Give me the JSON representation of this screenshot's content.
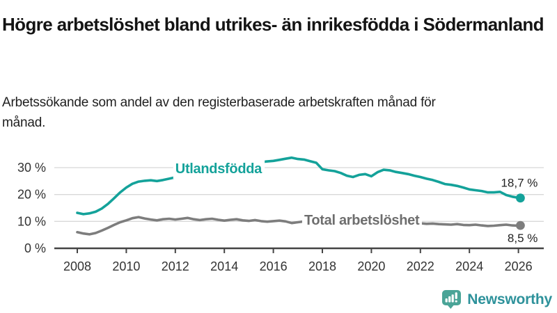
{
  "header": {
    "title": "Högre arbetslöshet bland utrikes- än inrikesfödda i Södermanland",
    "subtitle": "Arbetssökande som andel av den registerbaserade arbetskraften månad för månad."
  },
  "colors": {
    "accent_teal": "#14A29A",
    "series_gray": "#7D7D7D",
    "gray_label": "#6E6E6E",
    "grid": "#D8D8D8",
    "axis": "#444444",
    "tick_text": "#333333",
    "value_text": "#222222",
    "logo_icon": "#4AA497",
    "logo_text": "#2E929B"
  },
  "branding": {
    "logo_text": "Newsworthy",
    "logo_icon": "newsworthy-speech-bubble-bar-chart-icon"
  },
  "chart_data": {
    "type": "line",
    "title": "Högre arbetslöshet bland utrikes- än inrikesfödda i Södermanland",
    "xlabel": "",
    "ylabel": "",
    "grid": true,
    "legend_position": "inline-labels",
    "x_axis": {
      "ticks": [
        2008,
        2010,
        2012,
        2014,
        2016,
        2018,
        2020,
        2022,
        2024,
        2026
      ],
      "range": [
        2007.1,
        2027.0
      ]
    },
    "y_axis": {
      "ticks": [
        0,
        10,
        20,
        30
      ],
      "tick_labels": [
        "0 %",
        "10 %",
        "20 %",
        "30 %"
      ],
      "unit": "%",
      "range": [
        0,
        36
      ]
    },
    "series": [
      {
        "name": "Utlandsfödda",
        "color": "#14A29A",
        "label_color": "#14A29A",
        "end_label": "18,7 %",
        "end_value": 18.7,
        "value_label_position": "above",
        "label_at": {
          "x": 2012.0,
          "y": 27.9
        },
        "x": [
          2008.0,
          2008.25,
          2008.5,
          2008.75,
          2009.0,
          2009.25,
          2009.5,
          2009.75,
          2010.0,
          2010.25,
          2010.5,
          2010.75,
          2011.0,
          2011.25,
          2011.5,
          2011.75,
          2012.0,
          2012.25,
          2012.5,
          2012.75,
          2013.0,
          2013.25,
          2013.5,
          2013.75,
          2014.0,
          2014.25,
          2014.5,
          2014.75,
          2015.0,
          2015.25,
          2015.5,
          2015.75,
          2016.0,
          2016.25,
          2016.5,
          2016.75,
          2017.0,
          2017.25,
          2017.5,
          2017.75,
          2018.0,
          2018.25,
          2018.5,
          2018.75,
          2019.0,
          2019.25,
          2019.5,
          2019.75,
          2020.0,
          2020.25,
          2020.5,
          2020.75,
          2021.0,
          2021.25,
          2021.5,
          2021.75,
          2022.0,
          2022.25,
          2022.5,
          2022.75,
          2023.0,
          2023.25,
          2023.5,
          2023.75,
          2024.0,
          2024.25,
          2024.5,
          2024.75,
          2025.0,
          2025.25,
          2025.5,
          2025.75,
          2026.0,
          2026.08
        ],
        "values": [
          13.2,
          12.7,
          13.0,
          13.6,
          14.8,
          16.5,
          18.6,
          20.8,
          22.6,
          24.0,
          24.8,
          25.1,
          25.3,
          25.0,
          25.4,
          25.9,
          26.4,
          26.8,
          26.6,
          27.1,
          27.6,
          28.0,
          28.3,
          28.7,
          29.2,
          29.6,
          30.0,
          30.5,
          31.0,
          31.6,
          32.1,
          32.3,
          32.5,
          32.9,
          33.3,
          33.7,
          33.2,
          33.0,
          32.4,
          31.8,
          29.4,
          29.0,
          28.7,
          28.0,
          27.0,
          26.5,
          27.3,
          27.6,
          26.8,
          28.3,
          29.2,
          29.0,
          28.4,
          28.0,
          27.6,
          27.0,
          26.5,
          25.9,
          25.4,
          24.7,
          23.9,
          23.6,
          23.2,
          22.6,
          21.9,
          21.6,
          21.3,
          20.8,
          20.8,
          21.0,
          19.8,
          19.2,
          18.8,
          18.7
        ]
      },
      {
        "name": "Total arbetslöshet",
        "color": "#7D7D7D",
        "label_color": "#6E6E6E",
        "end_label": "8,5 %",
        "end_value": 8.5,
        "value_label_position": "below",
        "label_at": {
          "x": 2017.26,
          "y": 8.8
        },
        "x": [
          2008.0,
          2008.25,
          2008.5,
          2008.75,
          2009.0,
          2009.25,
          2009.5,
          2009.75,
          2010.0,
          2010.25,
          2010.5,
          2010.75,
          2011.0,
          2011.25,
          2011.5,
          2011.75,
          2012.0,
          2012.25,
          2012.5,
          2012.75,
          2013.0,
          2013.25,
          2013.5,
          2013.75,
          2014.0,
          2014.25,
          2014.5,
          2014.75,
          2015.0,
          2015.25,
          2015.5,
          2015.75,
          2016.0,
          2016.25,
          2016.5,
          2016.75,
          2017.0,
          2017.25,
          2017.5,
          2017.75,
          2018.0,
          2018.25,
          2018.5,
          2018.75,
          2019.0,
          2019.25,
          2019.5,
          2019.75,
          2020.0,
          2020.25,
          2020.5,
          2020.75,
          2021.0,
          2021.25,
          2021.5,
          2021.75,
          2022.0,
          2022.25,
          2022.5,
          2022.75,
          2023.0,
          2023.25,
          2023.5,
          2023.75,
          2024.0,
          2024.25,
          2024.5,
          2024.75,
          2025.0,
          2025.25,
          2025.5,
          2025.75,
          2026.0,
          2026.08
        ],
        "values": [
          6.0,
          5.5,
          5.2,
          5.7,
          6.6,
          7.6,
          8.7,
          9.7,
          10.4,
          11.2,
          11.6,
          11.1,
          10.7,
          10.4,
          10.8,
          11.0,
          10.7,
          11.0,
          11.3,
          10.8,
          10.5,
          10.8,
          11.0,
          10.6,
          10.3,
          10.6,
          10.8,
          10.4,
          10.2,
          10.5,
          10.1,
          9.9,
          10.1,
          10.3,
          10.0,
          9.4,
          9.7,
          10.0,
          10.2,
          9.9,
          9.7,
          9.9,
          9.6,
          9.4,
          9.3,
          9.5,
          9.7,
          9.9,
          10.2,
          11.0,
          11.3,
          11.0,
          10.6,
          10.2,
          9.8,
          9.5,
          9.3,
          9.1,
          9.2,
          9.0,
          8.9,
          8.8,
          9.0,
          8.7,
          8.6,
          8.8,
          8.5,
          8.3,
          8.4,
          8.6,
          8.8,
          8.5,
          8.4,
          8.5
        ]
      }
    ]
  }
}
